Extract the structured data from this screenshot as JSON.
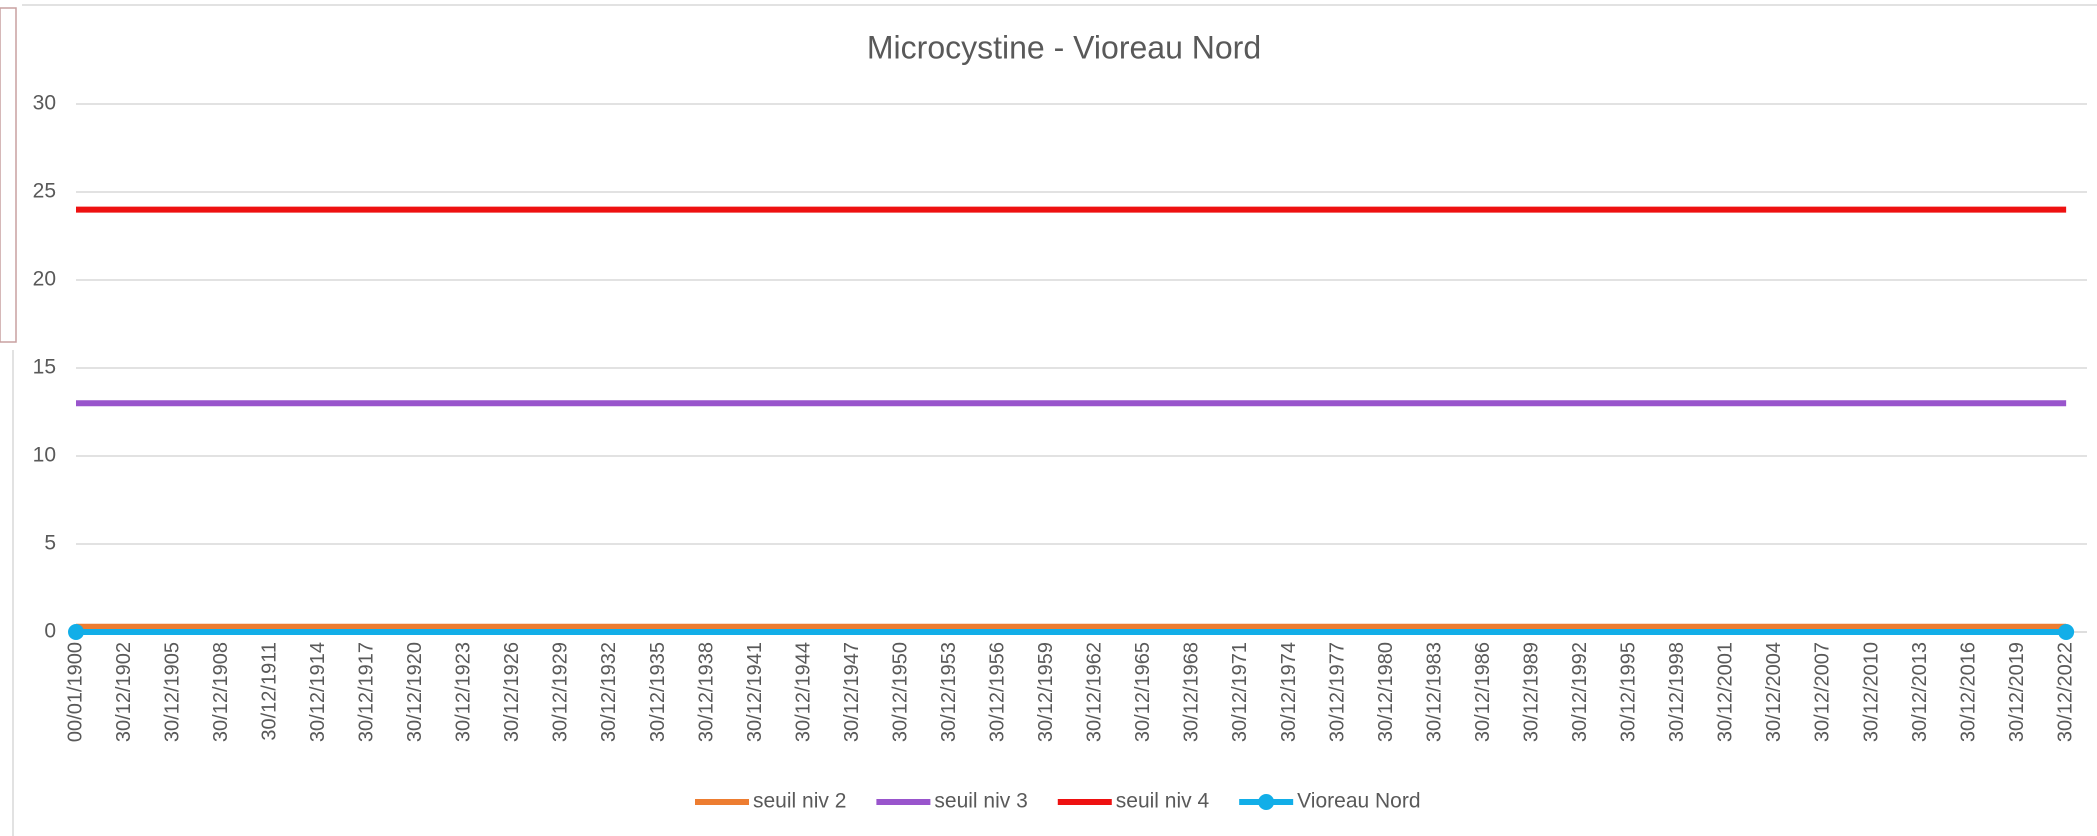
{
  "chart_data": {
    "type": "line",
    "title": "Microcystine -  Vioreau Nord",
    "categories": [
      "00/01/1900",
      "30/12/1902",
      "30/12/1905",
      "30/12/1908",
      "30/12/1911",
      "30/12/1914",
      "30/12/1917",
      "30/12/1920",
      "30/12/1923",
      "30/12/1926",
      "30/12/1929",
      "30/12/1932",
      "30/12/1935",
      "30/12/1938",
      "30/12/1941",
      "30/12/1944",
      "30/12/1947",
      "30/12/1950",
      "30/12/1953",
      "30/12/1956",
      "30/12/1959",
      "30/12/1962",
      "30/12/1965",
      "30/12/1968",
      "30/12/1971",
      "30/12/1974",
      "30/12/1977",
      "30/12/1980",
      "30/12/1983",
      "30/12/1986",
      "30/12/1989",
      "30/12/1992",
      "30/12/1995",
      "30/12/1998",
      "30/12/2001",
      "30/12/2004",
      "30/12/2007",
      "30/12/2010",
      "30/12/2013",
      "30/12/2016",
      "30/12/2019",
      "30/12/2022"
    ],
    "series": [
      {
        "name": "seuil niv 2",
        "color": "#ed7d31",
        "values": [
          0.3,
          0.3,
          0.3,
          0.3,
          0.3,
          0.3,
          0.3,
          0.3,
          0.3,
          0.3,
          0.3,
          0.3,
          0.3,
          0.3,
          0.3,
          0.3,
          0.3,
          0.3,
          0.3,
          0.3,
          0.3,
          0.3,
          0.3,
          0.3,
          0.3,
          0.3,
          0.3,
          0.3,
          0.3,
          0.3,
          0.3,
          0.3,
          0.3,
          0.3,
          0.3,
          0.3,
          0.3,
          0.3,
          0.3,
          0.3,
          0.3,
          0.3
        ]
      },
      {
        "name": "seuil niv 3",
        "color": "#9955cc",
        "values": [
          13,
          13,
          13,
          13,
          13,
          13,
          13,
          13,
          13,
          13,
          13,
          13,
          13,
          13,
          13,
          13,
          13,
          13,
          13,
          13,
          13,
          13,
          13,
          13,
          13,
          13,
          13,
          13,
          13,
          13,
          13,
          13,
          13,
          13,
          13,
          13,
          13,
          13,
          13,
          13,
          13,
          13
        ]
      },
      {
        "name": "seuil niv 4",
        "color": "#ee1111",
        "values": [
          24,
          24,
          24,
          24,
          24,
          24,
          24,
          24,
          24,
          24,
          24,
          24,
          24,
          24,
          24,
          24,
          24,
          24,
          24,
          24,
          24,
          24,
          24,
          24,
          24,
          24,
          24,
          24,
          24,
          24,
          24,
          24,
          24,
          24,
          24,
          24,
          24,
          24,
          24,
          24,
          24,
          24
        ]
      },
      {
        "name": "Vioreau Nord",
        "color": "#12aee8",
        "marker": true,
        "values": [
          0,
          0,
          0,
          0,
          0,
          0,
          0,
          0,
          0,
          0,
          0,
          0,
          0,
          0,
          0,
          0,
          0,
          0,
          0,
          0,
          0,
          0,
          0,
          0,
          0,
          0,
          0,
          0,
          0,
          0,
          0,
          0,
          0,
          0,
          0,
          0,
          0,
          0,
          0,
          0,
          0,
          0
        ]
      }
    ],
    "ylim": [
      0,
      32
    ],
    "yticks": [
      0,
      5,
      10,
      15,
      20,
      25,
      30
    ],
    "grid": true,
    "legend": "bottom"
  }
}
